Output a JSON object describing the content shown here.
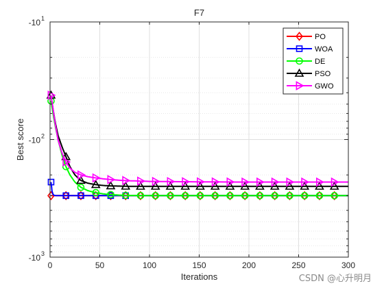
{
  "chart_data": {
    "type": "line",
    "title": "F7",
    "xlabel": "Iterations",
    "ylabel": "Best score",
    "xlim": [
      0,
      300
    ],
    "x_ticks": [
      0,
      50,
      100,
      150,
      200,
      250,
      300
    ],
    "y_scale": "log",
    "y_reversed": true,
    "ylim": [
      -10,
      -1000
    ],
    "y_tick_labels": [
      {
        "base": "-10",
        "exp": "1",
        "value": -10
      },
      {
        "base": "-10",
        "exp": "2",
        "value": -100
      },
      {
        "base": "-10",
        "exp": "3",
        "value": -1000
      }
    ],
    "grid": true,
    "legend_position": "top-right",
    "series": [
      {
        "name": "PO",
        "color": "#ff0000",
        "marker": "diamond",
        "x": [
          1,
          3,
          5,
          10,
          20,
          40,
          80,
          150,
          300
        ],
        "y": [
          -300,
          -300,
          -300,
          -300,
          -300,
          -300,
          -300,
          -300,
          -300
        ],
        "marker_x": [
          1,
          16,
          31,
          46,
          61,
          76,
          91,
          106,
          121,
          136,
          151,
          166,
          181,
          196,
          211,
          226,
          241,
          256,
          271,
          286
        ]
      },
      {
        "name": "WOA",
        "color": "#0000ff",
        "marker": "square",
        "x": [
          1,
          2,
          3,
          4,
          6,
          10,
          20,
          40,
          80,
          150,
          300
        ],
        "y": [
          -230,
          -275,
          -292,
          -298,
          -300,
          -300,
          -300,
          -300,
          -300,
          -300,
          -300
        ],
        "marker_x": [
          1,
          16,
          31,
          46,
          61,
          76
        ]
      },
      {
        "name": "DE",
        "color": "#00ff00",
        "marker": "circle",
        "x": [
          1,
          3,
          5,
          8,
          12,
          16,
          20,
          25,
          31,
          38,
          46,
          54,
          61,
          70,
          80,
          100,
          150,
          200,
          300
        ],
        "y": [
          -47,
          -60,
          -75,
          -100,
          -135,
          -170,
          -200,
          -230,
          -255,
          -272,
          -283,
          -290,
          -294,
          -297,
          -299,
          -300,
          -300,
          -300,
          -300
        ],
        "marker_x": [
          1,
          16,
          31,
          46,
          61,
          76,
          91,
          106,
          121,
          136,
          151,
          166,
          181,
          196,
          211,
          226,
          241,
          256,
          271,
          286
        ]
      },
      {
        "name": "PSO",
        "color": "#000000",
        "marker": "triangle",
        "x": [
          1,
          3,
          5,
          8,
          12,
          16,
          20,
          25,
          31,
          38,
          46,
          54,
          61,
          70,
          80,
          100,
          150,
          200,
          300
        ],
        "y": [
          -42,
          -55,
          -70,
          -92,
          -115,
          -140,
          -170,
          -200,
          -223,
          -235,
          -242,
          -246,
          -248,
          -249,
          -250,
          -250,
          -250,
          -250,
          -250
        ],
        "marker_x": [
          1,
          16,
          31,
          46,
          61,
          76,
          91,
          106,
          121,
          136,
          151,
          166,
          181,
          196,
          211,
          226,
          241,
          256,
          271,
          286
        ]
      },
      {
        "name": "GWO",
        "color": "#ff00ff",
        "marker": "triangle-right",
        "x": [
          1,
          3,
          5,
          8,
          12,
          16,
          20,
          25,
          31,
          38,
          46,
          54,
          61,
          70,
          80,
          100,
          150,
          200,
          300
        ],
        "y": [
          -42,
          -55,
          -72,
          -100,
          -130,
          -155,
          -175,
          -190,
          -200,
          -207,
          -212,
          -216,
          -219,
          -222,
          -224,
          -227,
          -229,
          -230,
          -230
        ],
        "marker_x": [
          1,
          16,
          31,
          46,
          61,
          76,
          91,
          106,
          121,
          136,
          151,
          166,
          181,
          196,
          211,
          226,
          241,
          256,
          271,
          286
        ]
      }
    ]
  },
  "watermark": "CSDN @心升明月"
}
